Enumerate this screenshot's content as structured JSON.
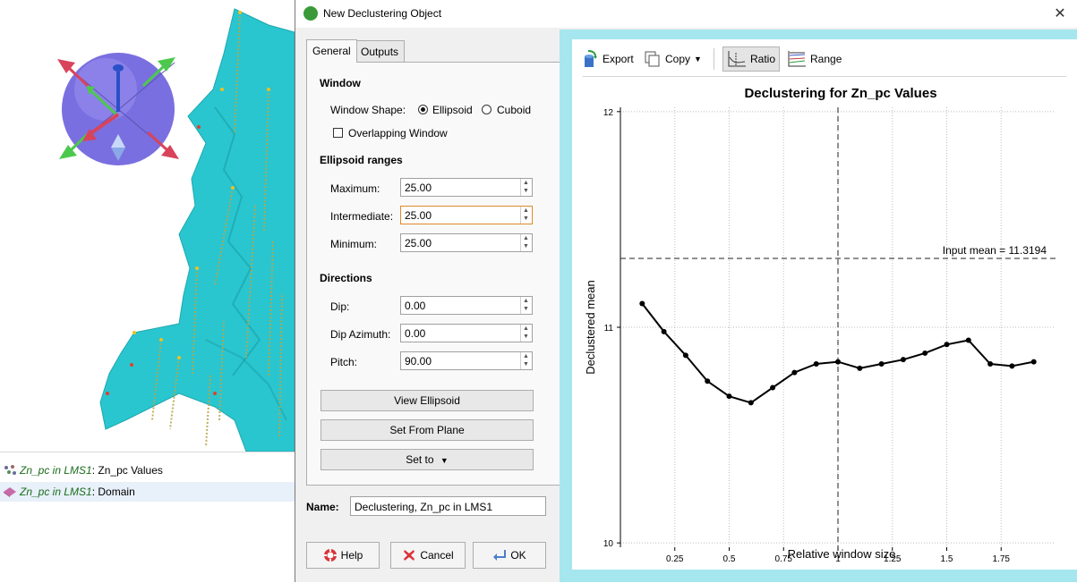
{
  "dialog": {
    "title": "New Declustering Object",
    "close_label": "✕"
  },
  "tabs": [
    {
      "label": "General",
      "active": true
    },
    {
      "label": "Outputs",
      "active": false
    }
  ],
  "window": {
    "heading": "Window",
    "shape_label": "Window Shape:",
    "shape_options": [
      "Ellipsoid",
      "Cuboid"
    ],
    "selected_shape": "Ellipsoid",
    "overlapping_label": "Overlapping Window",
    "overlapping_checked": false
  },
  "ellipsoid": {
    "heading": "Ellipsoid ranges",
    "maximum_label": "Maximum:",
    "maximum_value": "25.00",
    "intermediate_label": "Intermediate:",
    "intermediate_value": "25.00",
    "minimum_label": "Minimum:",
    "minimum_value": "25.00"
  },
  "directions": {
    "heading": "Directions",
    "dip_label": "Dip:",
    "dip_value": "0.00",
    "azimuth_label": "Dip Azimuth:",
    "azimuth_value": "0.00",
    "pitch_label": "Pitch:",
    "pitch_value": "90.00"
  },
  "buttons": {
    "view_ellipsoid": "View Ellipsoid",
    "set_from_plane": "Set From Plane",
    "set_to": "Set to",
    "help": "Help",
    "cancel": "Cancel",
    "ok": "OK"
  },
  "name": {
    "label": "Name:",
    "value": "Declustering, Zn_pc in LMS1"
  },
  "toolbar": {
    "export": "Export",
    "copy": "Copy",
    "ratio": "Ratio",
    "range": "Range"
  },
  "tree": [
    {
      "object": "Zn_pc in LMS1",
      "suffix": ": Zn_pc Values",
      "icon": "points-icon",
      "selected": false
    },
    {
      "object": "Zn_pc in LMS1",
      "suffix": ": Domain",
      "icon": "mesh-icon",
      "selected": true
    }
  ],
  "colors": {
    "chart_frame": "#a6e6ee",
    "mesh": "#29c6cf",
    "widget_sphere": "#7a6fe0",
    "arrow_green": "#4cc94c",
    "arrow_red": "#d9435a"
  },
  "chart_data": {
    "type": "line",
    "title": "Declustering for Zn_pc Values",
    "xlabel": "Relative window size",
    "ylabel": "Declustered mean",
    "xlim": [
      0.0,
      2.0
    ],
    "ylim": [
      9.98,
      12.02
    ],
    "xticks": [
      0.25,
      0.5,
      0.75,
      1.0,
      1.25,
      1.5,
      1.75
    ],
    "xtick_labels": [
      "0.25",
      "0.5",
      "0.75",
      "1",
      "1.25",
      "1.5",
      "1.75"
    ],
    "yticks": [
      10,
      11,
      12
    ],
    "ytick_labels": [
      "10",
      "11",
      "12"
    ],
    "grid": true,
    "input_mean": 11.3194,
    "input_mean_label": "Input mean = 11.3194",
    "selected_x": 1.0,
    "series": [
      {
        "x": [
          0.1,
          0.2,
          0.3,
          0.4,
          0.5,
          0.6,
          0.7,
          0.8,
          0.9,
          1.0,
          1.1,
          1.2,
          1.3,
          1.4,
          1.5,
          1.6,
          1.7,
          1.8,
          1.9
        ],
        "values": [
          11.11,
          10.98,
          10.87,
          10.75,
          10.68,
          10.65,
          10.72,
          10.79,
          10.83,
          10.84,
          10.81,
          10.83,
          10.85,
          10.88,
          10.92,
          10.94,
          10.83,
          10.82,
          10.84
        ]
      }
    ]
  }
}
